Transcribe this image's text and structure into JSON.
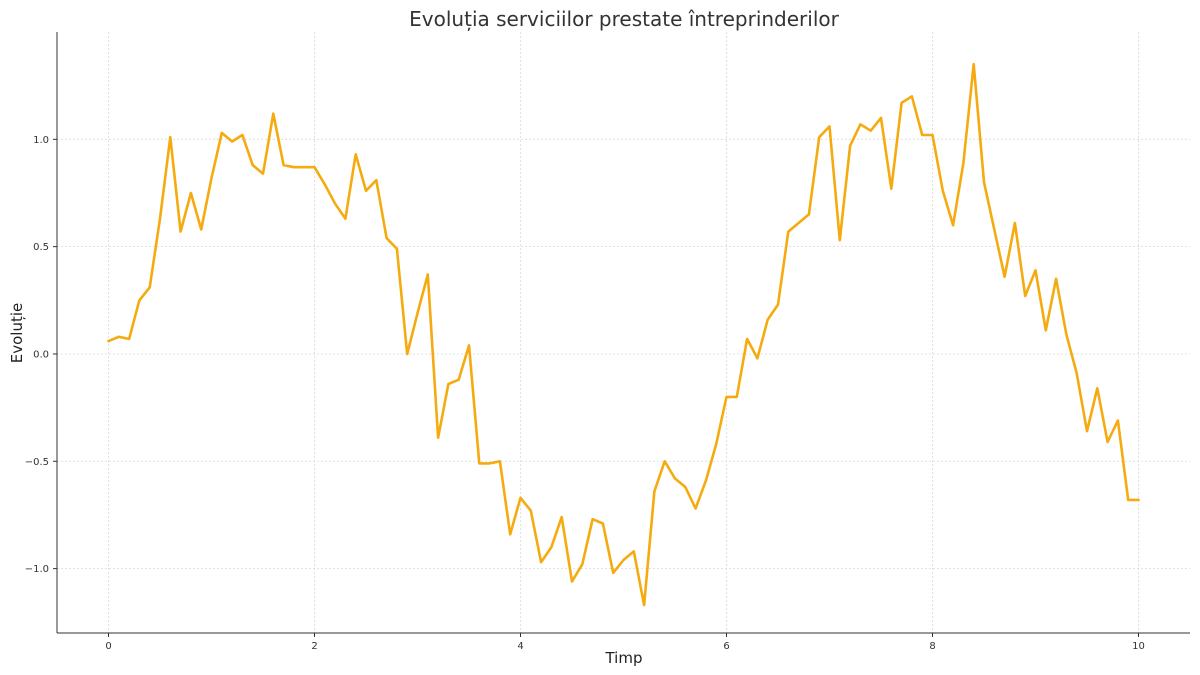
{
  "chart_data": {
    "type": "line",
    "title": "Evoluția serviciilor prestate întreprinderilor",
    "xlabel": "Timp",
    "ylabel": "Evoluție",
    "xlim": [
      -0.5,
      10.5
    ],
    "ylim": [
      -1.3,
      1.5
    ],
    "grid": true,
    "x_ticks": [
      0,
      2,
      4,
      6,
      8,
      10
    ],
    "x_tick_labels": [
      "0",
      "2",
      "4",
      "6",
      "8",
      "10"
    ],
    "y_ticks": [
      -1.0,
      -0.5,
      0.0,
      0.5,
      1.0
    ],
    "y_tick_labels": [
      "−1.0",
      "−0.5",
      "0.0",
      "0.5",
      "1.0"
    ],
    "color": "#f5ab10",
    "series": [
      {
        "x": [
          0.0,
          0.1,
          0.2,
          0.3,
          0.4,
          0.5,
          0.6,
          0.7,
          0.8,
          0.9,
          1.0,
          1.1,
          1.2,
          1.3,
          1.4,
          1.5,
          1.6,
          1.7,
          1.8,
          1.9,
          2.0,
          2.1,
          2.2,
          2.3,
          2.4,
          2.5,
          2.6,
          2.7,
          2.8,
          2.9,
          3.0,
          3.1,
          3.2,
          3.3,
          3.4,
          3.5,
          3.6,
          3.7,
          3.8,
          3.9,
          4.0,
          4.1,
          4.2,
          4.3,
          4.4,
          4.5,
          4.6,
          4.7,
          4.8,
          4.9,
          5.0,
          5.1,
          5.2,
          5.3,
          5.4,
          5.5,
          5.6,
          5.7,
          5.8,
          5.9,
          6.0,
          6.1,
          6.2,
          6.3,
          6.4,
          6.5,
          6.6,
          6.7,
          6.8,
          6.9,
          7.0,
          7.1,
          7.2,
          7.3,
          7.4,
          7.5,
          7.6,
          7.7,
          7.8,
          7.9,
          8.0,
          8.1,
          8.2,
          8.3,
          8.4,
          8.5,
          8.6,
          8.7,
          8.8,
          8.9,
          9.0,
          9.1,
          9.2,
          9.3,
          9.4,
          9.5,
          9.6,
          9.7,
          9.8,
          9.9,
          10.0
        ],
        "y": [
          0.06,
          0.08,
          0.07,
          0.25,
          0.31,
          0.63,
          1.01,
          0.57,
          0.75,
          0.58,
          0.82,
          1.03,
          0.99,
          1.02,
          0.88,
          0.84,
          1.12,
          0.88,
          0.87,
          0.87,
          0.87,
          0.79,
          0.7,
          0.63,
          0.93,
          0.76,
          0.81,
          0.54,
          0.49,
          0.0,
          0.19,
          0.37,
          -0.39,
          -0.14,
          -0.12,
          0.04,
          -0.51,
          -0.51,
          -0.5,
          -0.84,
          -0.67,
          -0.73,
          -0.97,
          -0.9,
          -0.76,
          -1.06,
          -0.98,
          -0.77,
          -0.79,
          -1.02,
          -0.96,
          -0.92,
          -1.17,
          -0.64,
          -0.5,
          -0.58,
          -0.62,
          -0.72,
          -0.59,
          -0.42,
          -0.2,
          -0.2,
          0.07,
          -0.02,
          0.16,
          0.23,
          0.57,
          0.61,
          0.65,
          1.01,
          1.06,
          0.53,
          0.97,
          1.07,
          1.04,
          1.1,
          0.77,
          1.17,
          1.2,
          1.02,
          1.02,
          0.76,
          0.6,
          0.89,
          1.35,
          0.8,
          0.58,
          0.36,
          0.61,
          0.27,
          0.39,
          0.11,
          0.35,
          0.09,
          -0.09,
          -0.36,
          -0.16,
          -0.41,
          -0.31,
          -0.68,
          -0.68
        ]
      }
    ]
  }
}
